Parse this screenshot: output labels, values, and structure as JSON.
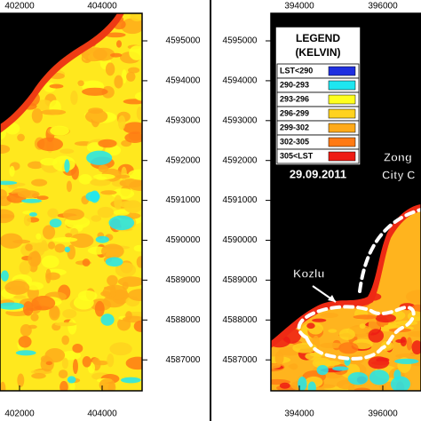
{
  "left_map": {
    "x_ticks": [
      "402000",
      "404000"
    ],
    "y_ticks": [
      "4595000",
      "4594000",
      "4593000",
      "4592000",
      "4591000",
      "4590000",
      "4589000",
      "4588000",
      "4587000"
    ]
  },
  "right_map": {
    "x_ticks": [
      "394000",
      "396000"
    ],
    "y_ticks": [
      "4595000",
      "4594000",
      "4593000",
      "4592000",
      "4591000",
      "4590000",
      "4589000",
      "4588000",
      "4587000"
    ]
  },
  "legend": {
    "title": "LEGEND",
    "unit": "(KELVIN)",
    "items": [
      {
        "label": "LST<290",
        "color": "#1f2fe0"
      },
      {
        "label": "290-293",
        "color": "#1ee6f0"
      },
      {
        "label": "293-296",
        "color": "#ffff1e"
      },
      {
        "label": "296-299",
        "color": "#ffd21e"
      },
      {
        "label": "299-302",
        "color": "#ffaa1a"
      },
      {
        "label": "302-305",
        "color": "#ff7a14"
      },
      {
        "label": "305<LST",
        "color": "#ee1c14"
      }
    ]
  },
  "date": "29.09.2011",
  "annotations": {
    "kozlu": "Kozlu",
    "zong": "Zong",
    "city": "City C"
  }
}
